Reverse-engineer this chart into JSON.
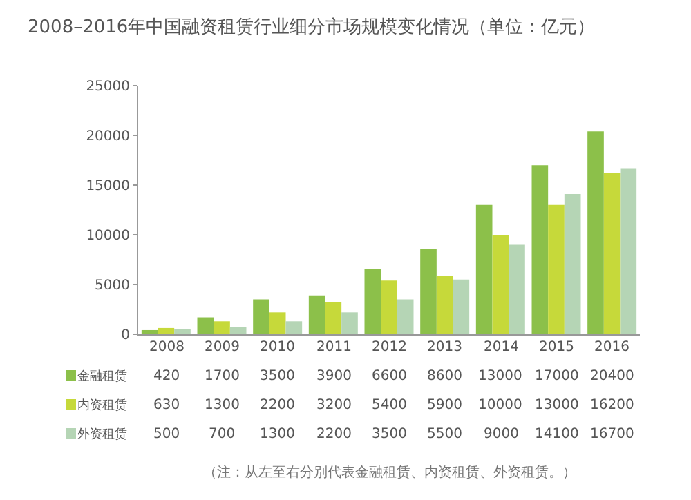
{
  "chart_data": {
    "type": "bar",
    "title": "2008–2016年中国融资租赁行业细分市场规模变化情况（单位：亿元）",
    "categories": [
      "2008",
      "2009",
      "2010",
      "2011",
      "2012",
      "2013",
      "2014",
      "2015",
      "2016"
    ],
    "series": [
      {
        "name": "金融租赁",
        "color": "#8cc04a",
        "values": [
          420,
          1700,
          3500,
          3900,
          6600,
          8600,
          13000,
          17000,
          20400
        ]
      },
      {
        "name": "内资租赁",
        "color": "#c6d93a",
        "values": [
          630,
          1300,
          2200,
          3200,
          5400,
          5900,
          10000,
          13000,
          16200
        ]
      },
      {
        "name": "外资租赁",
        "color": "#b5d5b5",
        "values": [
          500,
          700,
          1300,
          2200,
          3500,
          5500,
          9000,
          14100,
          16700
        ]
      }
    ],
    "ylim": [
      0,
      25000
    ],
    "yticks": [
      0,
      5000,
      10000,
      15000,
      20000,
      25000
    ],
    "legend": "bottom left",
    "data_labels": true,
    "annotations": [
      "（注：从左至右分别代表金融租赁、内资租赁、外资租赁。）"
    ]
  }
}
